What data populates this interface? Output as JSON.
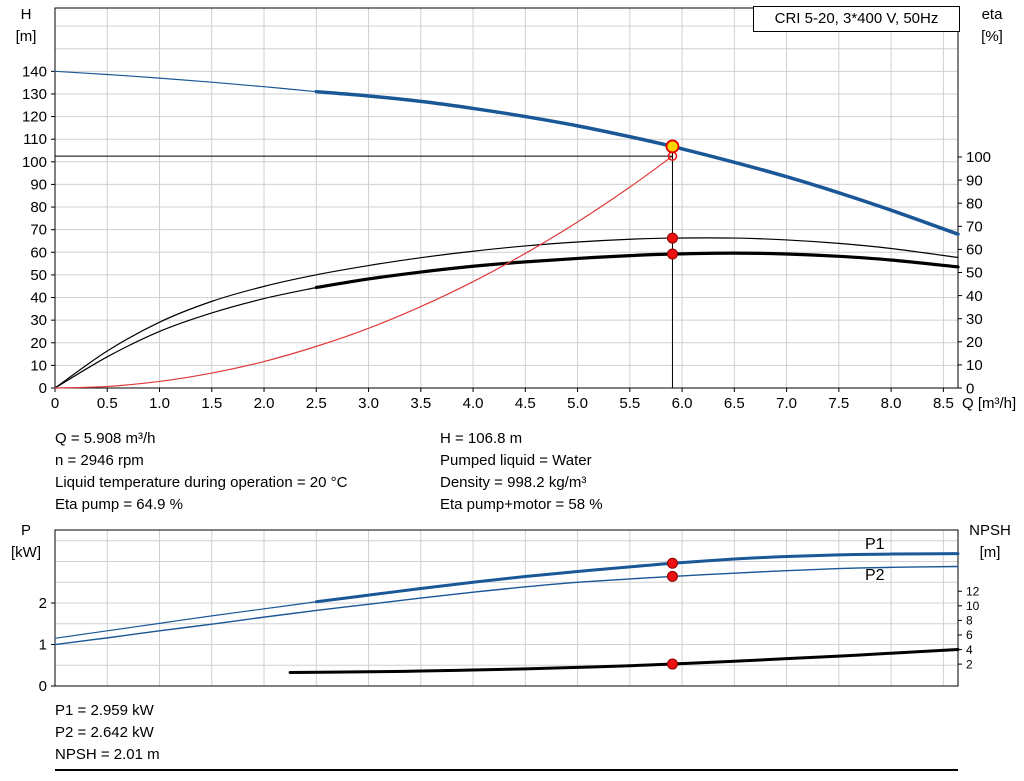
{
  "title_box": "CRI 5-20, 3*400 V, 50Hz",
  "colors": {
    "curve_blue": "#1a5796",
    "curve_black": "#000000",
    "curve_red": "#e03a3a",
    "marker_red": "#ee1111",
    "marker_yellow": "#ffd400",
    "label_blue": "#2e74b5",
    "grid": "#d0d0d0"
  },
  "axis_labels": {
    "top_left_1": "H",
    "top_left_2": "[m]",
    "top_right_1": "eta",
    "top_right_2": "[%]",
    "x_label": "Q [m³/h]",
    "bottom_left_1": "P",
    "bottom_left_2": "[kW]",
    "bottom_right_1": "NPSH",
    "bottom_right_2": "[m]"
  },
  "info_top": {
    "left": [
      "Q = 5.908 m³/h",
      "n = 2946 rpm",
      "Liquid temperature during operation = 20 °C",
      "Eta pump = 64.9 %"
    ],
    "right": [
      "H = 106.8 m",
      "Pumped liquid = Water",
      "Density = 998.2 kg/m³",
      "Eta pump+motor = 58 %"
    ]
  },
  "info_bottom": [
    "P1 = 2.959 kW",
    "P2 = 2.642 kW",
    "NPSH = 2.01 m"
  ],
  "chart_data": [
    {
      "type": "line",
      "title": "CRI 5-20, 3*400 V, 50Hz",
      "x_axis": {
        "label": "Q [m³/h]",
        "min": 0,
        "max": 8.64,
        "grid_step": 0.5,
        "ticks": [
          0,
          0.5,
          1,
          1.5,
          2,
          2.5,
          3,
          3.5,
          4,
          4.5,
          5,
          5.5,
          6,
          6.5,
          7,
          7.5,
          8,
          8.5
        ],
        "tick_labels": [
          "0",
          "0.5",
          "1.0",
          "1.5",
          "2.0",
          "2.5",
          "3.0",
          "3.5",
          "4.0",
          "4.5",
          "5.0",
          "5.5",
          "6.0",
          "6.5",
          "7.0",
          "7.5",
          "8.0",
          "8.5"
        ]
      },
      "left_axis": {
        "label": "H [m]",
        "min": 0,
        "max": 168,
        "grid_step": 10,
        "ticks": [
          0,
          10,
          20,
          30,
          40,
          50,
          60,
          70,
          80,
          90,
          100,
          110,
          120,
          130,
          140
        ]
      },
      "right_axis": {
        "label": "eta [%]",
        "min": 0,
        "max": 164.5,
        "ticks": [
          0,
          10,
          20,
          30,
          40,
          50,
          60,
          70,
          80,
          90,
          100
        ]
      },
      "series": [
        {
          "name": "qh-curve-lead",
          "axis": "left",
          "color": "#1a5796",
          "width": 1.2,
          "points": [
            [
              0,
              140
            ],
            [
              0.5,
              138.6
            ],
            [
              1,
              137
            ],
            [
              1.5,
              135.2
            ],
            [
              2,
              133.2
            ],
            [
              2.5,
              131
            ]
          ]
        },
        {
          "name": "qh-curve",
          "axis": "left",
          "color": "#1a5796",
          "width": 3.5,
          "points": [
            [
              2.5,
              131
            ],
            [
              3,
              129.1
            ],
            [
              3.5,
              126.7
            ],
            [
              4,
              123.6
            ],
            [
              4.5,
              120
            ],
            [
              5,
              115.9
            ],
            [
              5.5,
              111.1
            ],
            [
              5.908,
              106.8
            ],
            [
              6.5,
              99.8
            ],
            [
              7,
              93.4
            ],
            [
              7.5,
              86.3
            ],
            [
              8,
              78.6
            ],
            [
              8.64,
              68
            ]
          ]
        },
        {
          "name": "eta-pump-curve",
          "axis": "right",
          "color": "#000000",
          "width": 1.2,
          "points": [
            [
              0,
              0
            ],
            [
              0.5,
              16
            ],
            [
              1,
              28.5
            ],
            [
              1.5,
              37.5
            ],
            [
              2,
              44
            ],
            [
              2.5,
              49
            ],
            [
              3,
              53
            ],
            [
              3.5,
              56.4
            ],
            [
              4,
              59.2
            ],
            [
              4.5,
              61.5
            ],
            [
              5,
              63.2
            ],
            [
              5.5,
              64.4
            ],
            [
              5.908,
              64.9
            ],
            [
              6.5,
              64.9
            ],
            [
              7,
              64.1
            ],
            [
              7.5,
              62.6
            ],
            [
              8,
              60.4
            ],
            [
              8.64,
              56.5
            ]
          ]
        },
        {
          "name": "eta-pump-motor-lead",
          "axis": "right",
          "color": "#000000",
          "width": 1.2,
          "points": [
            [
              0,
              0
            ],
            [
              0.5,
              13.5
            ],
            [
              1,
              24.5
            ],
            [
              1.5,
              32.5
            ],
            [
              2,
              38.7
            ],
            [
              2.5,
              43.5
            ]
          ]
        },
        {
          "name": "eta-pump-motor-curve",
          "axis": "right",
          "color": "#000000",
          "width": 3.2,
          "points": [
            [
              2.5,
              43.5
            ],
            [
              3,
              47.2
            ],
            [
              3.5,
              50.2
            ],
            [
              4,
              52.7
            ],
            [
              4.5,
              54.6
            ],
            [
              5,
              56.1
            ],
            [
              5.5,
              57.3
            ],
            [
              5.908,
              58
            ],
            [
              6.5,
              58.4
            ],
            [
              7,
              58
            ],
            [
              7.5,
              57
            ],
            [
              8,
              55.4
            ],
            [
              8.64,
              52.4
            ]
          ]
        },
        {
          "name": "system-curve",
          "axis": "left",
          "color": "#e03a3a",
          "width": 1.2,
          "points": [
            [
              0,
              0
            ],
            [
              0.5,
              0.7
            ],
            [
              1,
              2.9
            ],
            [
              1.5,
              6.6
            ],
            [
              2,
              11.7
            ],
            [
              2.5,
              18.4
            ],
            [
              3,
              26.4
            ],
            [
              3.5,
              36
            ],
            [
              4,
              47
            ],
            [
              4.5,
              59.5
            ],
            [
              5,
              73.4
            ],
            [
              5.5,
              88.8
            ],
            [
              5.908,
              102.5
            ]
          ]
        }
      ],
      "ref_lines": [
        {
          "name": "duty-h-line",
          "orient": "h",
          "v": 102.5,
          "axis": "left",
          "x1": 0,
          "x2": 5.908
        },
        {
          "name": "duty-v-line",
          "orient": "v",
          "x": 5.908,
          "v1": 0,
          "v2": 106.8,
          "axis": "left"
        }
      ],
      "markers": [
        {
          "name": "system-duty-marker",
          "x": 5.908,
          "v": 102.5,
          "axis": "left",
          "r": 4,
          "fill": "none",
          "stroke": "#ee1111",
          "sw": 1.5
        },
        {
          "name": "duty-point-marker",
          "x": 5.908,
          "v": 106.8,
          "axis": "left",
          "r": 6,
          "fill": "#ffd400",
          "stroke": "#e00000",
          "sw": 1.8
        },
        {
          "name": "eta-pump-dot",
          "x": 5.908,
          "v": 64.9,
          "axis": "right",
          "r": 5,
          "fill": "#ee1111",
          "stroke": "#8a0000",
          "sw": 1
        },
        {
          "name": "eta-pump-motor-dot",
          "x": 5.908,
          "v": 58,
          "axis": "right",
          "r": 5,
          "fill": "#ee1111",
          "stroke": "#8a0000",
          "sw": 1
        }
      ],
      "annotations": []
    },
    {
      "type": "line",
      "title": "Power and NPSH curves",
      "x_axis": {
        "label": "",
        "min": 0,
        "max": 8.64,
        "grid_step": 0.5,
        "ticks": [],
        "tick_labels": []
      },
      "left_axis": {
        "label": "P [kW]",
        "min": 0,
        "max": 3.76,
        "grid_step": 0.5,
        "ticks": [
          0,
          1,
          2
        ]
      },
      "right_axis": {
        "label": "NPSH [m]",
        "min": -1,
        "max": 20.4,
        "ticks": [
          2,
          4,
          6,
          8,
          10,
          12
        ]
      },
      "series": [
        {
          "name": "p1-curve-lead",
          "axis": "left",
          "color": "#1a5796",
          "width": 1.2,
          "points": [
            [
              0,
              1.15
            ],
            [
              0.5,
              1.33
            ],
            [
              1,
              1.51
            ],
            [
              1.5,
              1.69
            ],
            [
              2,
              1.86
            ],
            [
              2.5,
              2.03
            ]
          ]
        },
        {
          "name": "p1-curve",
          "axis": "left",
          "color": "#1a5796",
          "width": 3,
          "points": [
            [
              2.5,
              2.03
            ],
            [
              3,
              2.19
            ],
            [
              3.5,
              2.35
            ],
            [
              4,
              2.5
            ],
            [
              4.5,
              2.64
            ],
            [
              5,
              2.76
            ],
            [
              5.5,
              2.87
            ],
            [
              5.908,
              2.959
            ],
            [
              6.5,
              3.06
            ],
            [
              7,
              3.12
            ],
            [
              7.5,
              3.16
            ],
            [
              8,
              3.18
            ],
            [
              8.64,
              3.19
            ]
          ]
        },
        {
          "name": "p2-curve",
          "axis": "left",
          "color": "#1a5796",
          "width": 1.4,
          "points": [
            [
              0,
              1
            ],
            [
              0.5,
              1.16
            ],
            [
              1,
              1.33
            ],
            [
              1.5,
              1.49
            ],
            [
              2,
              1.66
            ],
            [
              2.5,
              1.82
            ],
            [
              3,
              1.97
            ],
            [
              3.5,
              2.12
            ],
            [
              4,
              2.26
            ],
            [
              4.5,
              2.39
            ],
            [
              5,
              2.5
            ],
            [
              5.5,
              2.58
            ],
            [
              5.908,
              2.642
            ],
            [
              6.5,
              2.72
            ],
            [
              7,
              2.78
            ],
            [
              7.5,
              2.83
            ],
            [
              8,
              2.86
            ],
            [
              8.64,
              2.88
            ]
          ]
        },
        {
          "name": "npsh-curve",
          "axis": "right",
          "color": "#000000",
          "width": 3,
          "points": [
            [
              2.25,
              0.85
            ],
            [
              3,
              0.95
            ],
            [
              3.5,
              1.05
            ],
            [
              4,
              1.2
            ],
            [
              4.5,
              1.35
            ],
            [
              5,
              1.55
            ],
            [
              5.5,
              1.78
            ],
            [
              5.908,
              2.01
            ],
            [
              6.5,
              2.4
            ],
            [
              7,
              2.75
            ],
            [
              7.5,
              3.1
            ],
            [
              8,
              3.5
            ],
            [
              8.64,
              4
            ]
          ]
        }
      ],
      "ref_lines": [],
      "markers": [
        {
          "name": "p1-dot",
          "x": 5.908,
          "v": 2.959,
          "axis": "left",
          "r": 5,
          "fill": "#ee1111",
          "stroke": "#8a0000",
          "sw": 1
        },
        {
          "name": "p2-dot",
          "x": 5.908,
          "v": 2.642,
          "axis": "left",
          "r": 5,
          "fill": "#ee1111",
          "stroke": "#8a0000",
          "sw": 1
        },
        {
          "name": "npsh-dot",
          "x": 5.908,
          "v": 2.01,
          "axis": "right",
          "r": 5,
          "fill": "#ee1111",
          "stroke": "#8a0000",
          "sw": 1
        }
      ],
      "annotations": [
        {
          "name": "p1-label",
          "text": "P1",
          "x": 7.75,
          "v": 3.3,
          "axis": "left",
          "color": "#2e74b5",
          "size": 16
        },
        {
          "name": "p2-label",
          "text": "P2",
          "x": 7.75,
          "v": 2.55,
          "axis": "left",
          "color": "#2e74b5",
          "size": 16
        }
      ]
    }
  ]
}
